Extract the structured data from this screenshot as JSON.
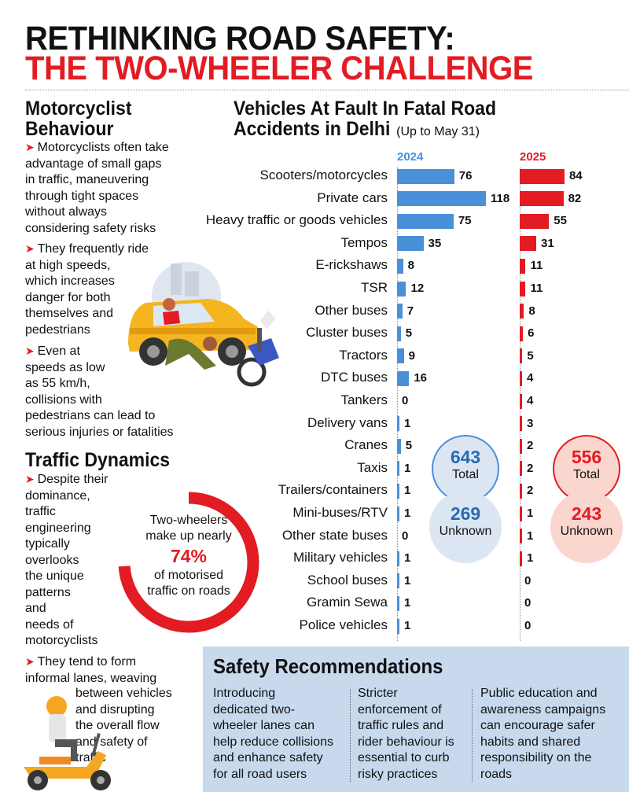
{
  "header": {
    "title_line1": "RETHINKING ROAD SAFETY:",
    "title_line2": "THE TWO-WHEELER CHALLENGE"
  },
  "behaviour": {
    "heading_line1": "Motorcyclist",
    "heading_line2": "Behaviour",
    "bullet1": [
      "Motorcyclists often take",
      "advantage of small gaps",
      "in traffic, maneuvering",
      "through tight spaces",
      "without always",
      "considering safety risks"
    ],
    "bullet2": [
      "They frequently ride",
      "at high speeds,",
      "which increases",
      "danger for both",
      "themselves and",
      "pedestrians"
    ],
    "bullet3": [
      "Even at",
      "speeds as low",
      "as 55 km/h,",
      "collisions with",
      "pedestrians can lead to",
      "serious injuries or fatalities"
    ]
  },
  "traffic": {
    "heading": "Traffic Dynamics",
    "bullet1": [
      "Despite their",
      "dominance,",
      "traffic",
      "engineering",
      "typically",
      "overlooks",
      "the unique",
      "patterns",
      "and",
      "needs of",
      "motorcyclists"
    ],
    "bullet2": [
      "They tend to form",
      "informal lanes, weaving"
    ],
    "bullet2_indented": [
      "between vehicles",
      "and disrupting",
      "the overall flow",
      "and safety of",
      "traffic"
    ],
    "ring_line1": "Two-wheelers",
    "ring_line2": "make up nearly",
    "ring_percent": "74%",
    "ring_line3": "of motorised",
    "ring_line4": "traffic on roads",
    "ring_fraction": 0.74
  },
  "colors": {
    "red": "#e31b23",
    "blue": "#4a90d9",
    "pale_blue": "#dce6f3",
    "pale_red": "#fbd6cf",
    "rec_bg": "#c8d9ee"
  },
  "icons": [
    "car-crash-illustration",
    "scooter-rider-illustration",
    "arrow-bullet-icon"
  ],
  "chart_data": {
    "type": "bar",
    "title_line1": "Vehicles At Fault In Fatal Road",
    "title_line2": "Accidents in Delhi",
    "title_note": "(Up to May 31)",
    "categories": [
      "Scooters/motorcycles",
      "Private cars",
      "Heavy traffic or goods vehicles",
      "Tempos",
      "E-rickshaws",
      "TSR",
      "Other buses",
      "Cluster buses",
      "Tractors",
      "DTC buses",
      "Tankers",
      "Delivery vans",
      "Cranes",
      "Taxis",
      "Trailers/containers",
      "Mini-buses/RTV",
      "Other state buses",
      "Military vehicles",
      "School buses",
      "Gramin Sewa",
      "Police vehicles"
    ],
    "series": [
      {
        "name": "2024",
        "values": [
          76,
          118,
          75,
          35,
          8,
          12,
          7,
          5,
          9,
          16,
          0,
          1,
          5,
          1,
          1,
          1,
          0,
          1,
          1,
          1,
          1
        ]
      },
      {
        "name": "2025",
        "values": [
          84,
          82,
          55,
          31,
          11,
          11,
          8,
          6,
          5,
          4,
          4,
          3,
          2,
          2,
          2,
          1,
          1,
          1,
          0,
          0,
          0
        ]
      }
    ],
    "totals": [
      {
        "value": "643",
        "label": "Total",
        "unknown_value": "269",
        "unknown_label": "Unknown"
      },
      {
        "value": "556",
        "label": "Total",
        "unknown_value": "243",
        "unknown_label": "Unknown"
      }
    ],
    "xlim": [
      0,
      118
    ]
  },
  "recommendations": {
    "heading": "Safety Recommendations",
    "col1": [
      "Introducing",
      "dedicated two-",
      "wheeler lanes can",
      "help reduce collisions",
      "and enhance safety",
      "for all road users"
    ],
    "col2": [
      "Stricter",
      "enforcement of",
      "traffic rules and",
      "rider behaviour is",
      "essential to curb",
      "risky practices"
    ],
    "col3": [
      "Public education and",
      "awareness campaigns",
      "can encourage safer",
      "habits and shared",
      "responsibility on the",
      "roads"
    ]
  }
}
